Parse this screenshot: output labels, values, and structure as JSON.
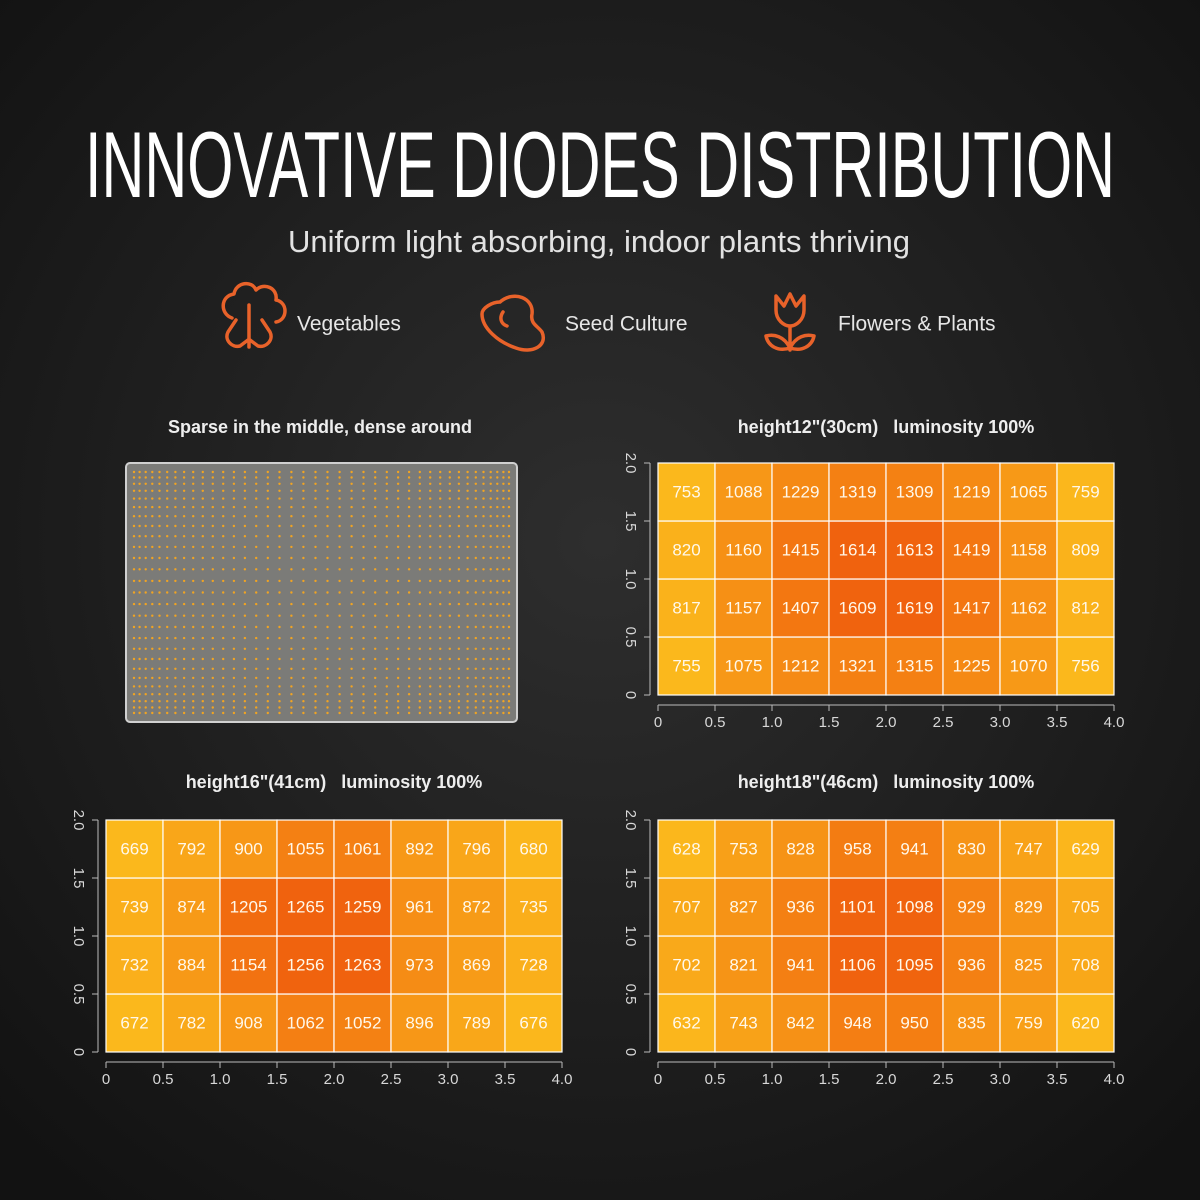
{
  "header": {
    "title": "INNOVATIVE DIODES DISTRIBUTION",
    "subtitle": "Uniform light absorbing, indoor plants thriving"
  },
  "features": [
    {
      "label": "Vegetables"
    },
    {
      "label": "Seed Culture"
    },
    {
      "label": "Flowers & Plants"
    }
  ],
  "panel": {
    "title": "Sparse in the middle, dense around"
  },
  "chart_data": [
    {
      "type": "heatmap",
      "title": "height12\"(30cm)   luminosity 100%",
      "xlim": [
        0,
        4
      ],
      "ylim": [
        0,
        2
      ],
      "xticks": [
        0,
        0.5,
        {
          "value": 1,
          "label": "1.0"
        },
        1.5,
        {
          "value": 2,
          "label": "2.0"
        },
        2.5,
        {
          "value": 3,
          "label": "3.0"
        },
        3.5,
        {
          "value": 4,
          "label": "4.0"
        }
      ],
      "yticks": [
        0,
        0.5,
        {
          "value": 1,
          "label": "1.0"
        },
        1.5,
        {
          "value": 2,
          "label": "2.0"
        }
      ],
      "colorscale": [
        "#fbb81c",
        "#f0620e"
      ],
      "values": [
        [
          755,
          1075,
          1212,
          1321,
          1315,
          1225,
          1070,
          756
        ],
        [
          817,
          1157,
          1407,
          1609,
          1619,
          1417,
          1162,
          812
        ],
        [
          820,
          1160,
          1415,
          1614,
          1613,
          1419,
          1158,
          809
        ],
        [
          753,
          1088,
          1229,
          1319,
          1309,
          1219,
          1065,
          759
        ]
      ]
    },
    {
      "type": "heatmap",
      "title": "height16\"(41cm)   luminosity 100%",
      "xlim": [
        0,
        4
      ],
      "ylim": [
        0,
        2
      ],
      "xticks": [
        0,
        0.5,
        {
          "value": 1,
          "label": "1.0"
        },
        1.5,
        {
          "value": 2,
          "label": "2.0"
        },
        2.5,
        {
          "value": 3,
          "label": "3.0"
        },
        3.5,
        {
          "value": 4,
          "label": "4.0"
        }
      ],
      "yticks": [
        0,
        0.5,
        {
          "value": 1,
          "label": "1.0"
        },
        1.5,
        {
          "value": 2,
          "label": "2.0"
        }
      ],
      "colorscale": [
        "#fbb81c",
        "#f0620e"
      ],
      "values": [
        [
          672,
          782,
          908,
          1062,
          1052,
          896,
          789,
          676
        ],
        [
          732,
          884,
          1154,
          1256,
          1263,
          973,
          869,
          728
        ],
        [
          739,
          874,
          1205,
          1265,
          1259,
          961,
          872,
          735
        ],
        [
          669,
          792,
          900,
          1055,
          1061,
          892,
          796,
          680
        ]
      ]
    },
    {
      "type": "heatmap",
      "title": "height18\"(46cm)   luminosity 100%",
      "xlim": [
        0,
        4
      ],
      "ylim": [
        0,
        2
      ],
      "xticks": [
        0,
        0.5,
        {
          "value": 1,
          "label": "1.0"
        },
        1.5,
        {
          "value": 2,
          "label": "2.0"
        },
        2.5,
        {
          "value": 3,
          "label": "3.0"
        },
        3.5,
        {
          "value": 4,
          "label": "4.0"
        }
      ],
      "yticks": [
        0,
        0.5,
        {
          "value": 1,
          "label": "1.0"
        },
        1.5,
        {
          "value": 2,
          "label": "2.0"
        }
      ],
      "colorscale": [
        "#fbb81c",
        "#f0620e"
      ],
      "values": [
        [
          632,
          743,
          842,
          948,
          950,
          835,
          759,
          620
        ],
        [
          702,
          821,
          941,
          1106,
          1095,
          936,
          825,
          708
        ],
        [
          707,
          827,
          936,
          1101,
          1098,
          929,
          829,
          705
        ],
        [
          628,
          753,
          828,
          958,
          941,
          830,
          747,
          629
        ]
      ]
    }
  ]
}
